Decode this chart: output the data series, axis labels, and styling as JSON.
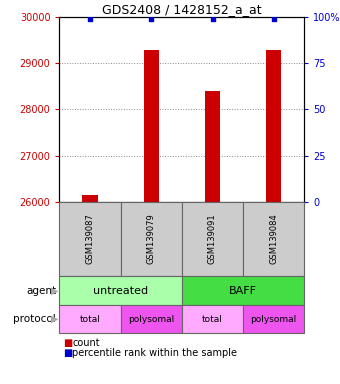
{
  "title": "GDS2408 / 1428152_a_at",
  "samples": [
    "GSM139087",
    "GSM139079",
    "GSM139091",
    "GSM139084"
  ],
  "counts": [
    26150,
    29300,
    28400,
    29300
  ],
  "percentile_ranks": [
    99,
    99,
    99,
    99
  ],
  "ylim_left": [
    26000,
    30000
  ],
  "yticks_left": [
    26000,
    27000,
    28000,
    29000,
    30000
  ],
  "ylim_right": [
    0,
    100
  ],
  "yticks_right": [
    0,
    25,
    50,
    75,
    100
  ],
  "bar_color": "#cc0000",
  "percentile_color": "#0000cc",
  "agent_groups": [
    {
      "label": "untreated",
      "span": [
        0,
        2
      ],
      "color": "#aaffaa"
    },
    {
      "label": "BAFF",
      "span": [
        2,
        4
      ],
      "color": "#44dd44"
    }
  ],
  "protocol_groups": [
    {
      "label": "total",
      "span": [
        0,
        1
      ],
      "color": "#ffaaff"
    },
    {
      "label": "polysomal",
      "span": [
        1,
        2
      ],
      "color": "#ee55ee"
    },
    {
      "label": "total",
      "span": [
        2,
        3
      ],
      "color": "#ffaaff"
    },
    {
      "label": "polysomal",
      "span": [
        3,
        4
      ],
      "color": "#ee55ee"
    }
  ],
  "legend_items": [
    {
      "color": "#cc0000",
      "label": "count"
    },
    {
      "color": "#0000cc",
      "label": "percentile rank within the sample"
    }
  ],
  "label_agent": "agent",
  "label_protocol": "protocol",
  "grid_color": "#888888",
  "bg_color": "#ffffff",
  "left_tick_color": "#cc0000",
  "right_tick_color": "#0000cc",
  "sample_box_color": "#cccccc",
  "arrow_color": "#aaaaaa"
}
